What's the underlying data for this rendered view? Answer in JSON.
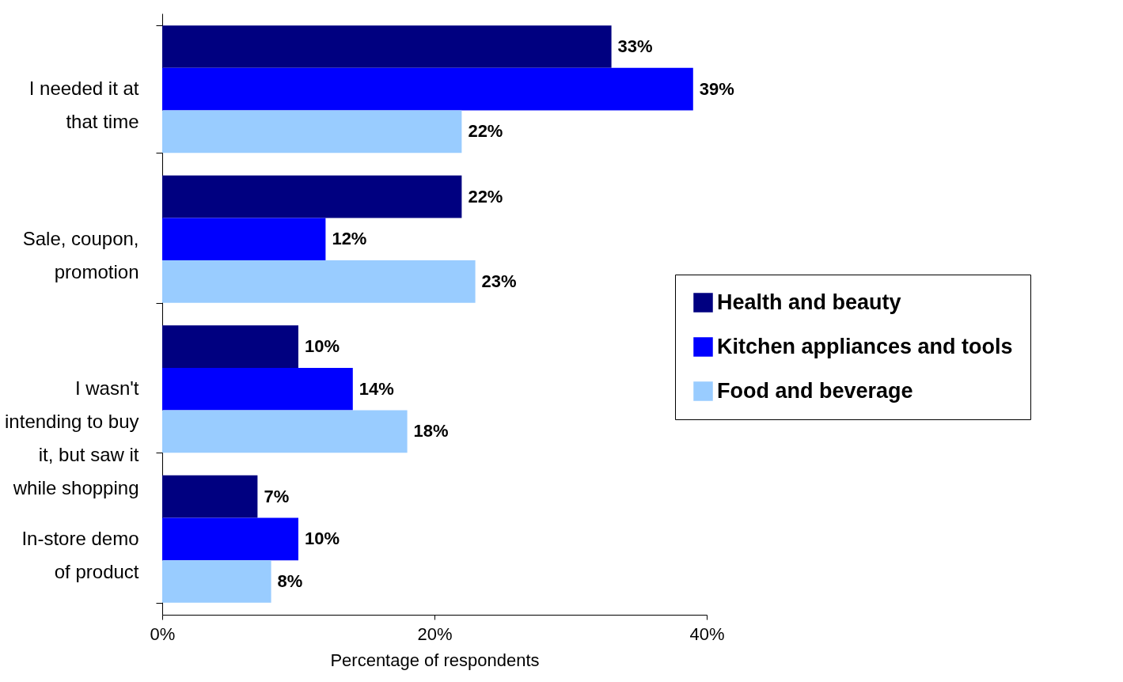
{
  "chart_data": {
    "type": "bar",
    "orientation": "horizontal",
    "categories": [
      "I needed it at\nthat time",
      "Sale, coupon,\npromotion",
      "I wasn't\nintending to buy\nit, but saw it\nwhile shopping",
      "In-store demo\nof product"
    ],
    "series": [
      {
        "name": "Health and beauty",
        "color": "#000080",
        "values": [
          33,
          22,
          10,
          7
        ],
        "value_labels": [
          "33%",
          "22%",
          "10%",
          "7%"
        ]
      },
      {
        "name": "Kitchen appliances and tools",
        "color": "#0000ff",
        "values": [
          39,
          12,
          14,
          10
        ],
        "value_labels": [
          "39%",
          "12%",
          "14%",
          "10%"
        ]
      },
      {
        "name": "Food and beverage",
        "color": "#99ccff",
        "values": [
          22,
          23,
          18,
          8
        ],
        "value_labels": [
          "22%",
          "23%",
          "18%",
          "8%"
        ]
      }
    ],
    "xlabel": "Percentage of respondents",
    "xlim": [
      0,
      40
    ],
    "xticks": [
      {
        "value": 0,
        "label": "0%"
      },
      {
        "value": 20,
        "label": "20%"
      },
      {
        "value": 40,
        "label": "40%"
      }
    ],
    "grid": false,
    "legend": "right"
  }
}
